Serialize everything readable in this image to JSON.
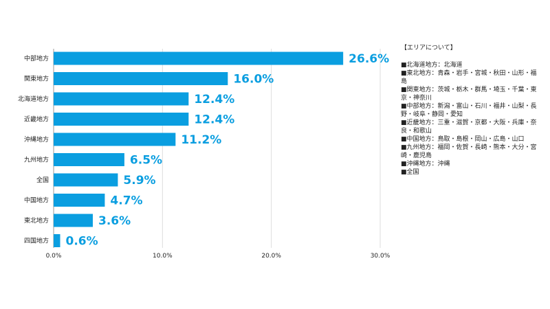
{
  "chart_data": {
    "type": "bar",
    "orientation": "horizontal",
    "categories": [
      "中部地方",
      "関東地方",
      "北海道地方",
      "近畿地方",
      "沖縄地方",
      "九州地方",
      "全国",
      "中国地方",
      "東北地方",
      "四国地方"
    ],
    "values": [
      26.6,
      16.0,
      12.4,
      12.4,
      11.2,
      6.5,
      5.9,
      4.7,
      3.6,
      0.6
    ],
    "value_labels": [
      "26.6%",
      "16.0%",
      "12.4%",
      "12.4%",
      "11.2%",
      "6.5%",
      "5.9%",
      "4.7%",
      "3.6%",
      "0.6%"
    ],
    "xlim": [
      0,
      30
    ],
    "xticks": [
      0,
      10,
      20,
      30
    ],
    "xtick_labels": [
      "0.0%",
      "10.0%",
      "20.0%",
      "30.0%"
    ],
    "grid": "vertical",
    "bar_color": "#0a9ee0",
    "label_color": "#0a9ee0",
    "title": "",
    "xlabel": "",
    "ylabel": ""
  },
  "legend": {
    "title": "【エリアについて】",
    "items": [
      "■北海道地方：北海道",
      "■東北地方：青森・岩手・宮城・秋田・山形・福島",
      "■関東地方：茨城・栃木・群馬・埼玉・千葉・東京・神奈川",
      "■中部地方：新潟・富山・石川・福井・山梨・長野・岐阜・静岡・愛知",
      "■近畿地方：三重・滋賀・京都・大阪・兵庫・奈良・和歌山",
      "■中国地方：鳥取・島根・岡山・広島・山口",
      "■九州地方：福岡・佐賀・長崎・熊本・大分・宮崎・鹿児島",
      "■沖縄地方：沖縄",
      "■全国"
    ]
  }
}
